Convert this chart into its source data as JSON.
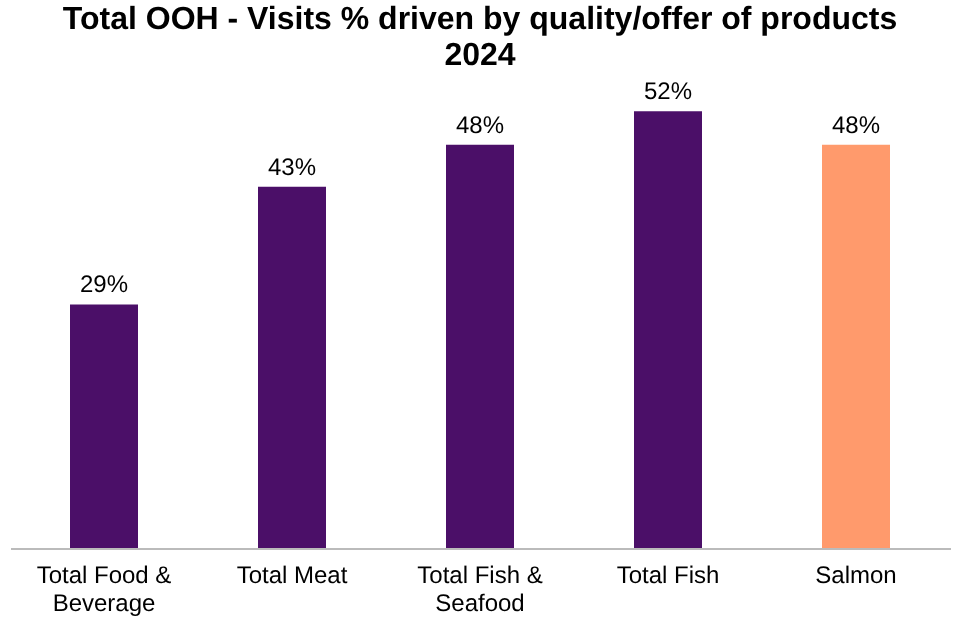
{
  "chart_data": {
    "type": "bar",
    "title": "Total OOH - Visits % driven by quality/offer of products\n2024",
    "categories": [
      "Total Food & Beverage",
      "Total Meat",
      "Total Fish & Seafood",
      "Total Fish",
      "Salmon"
    ],
    "values": [
      29,
      43,
      48,
      52,
      48
    ],
    "colors": [
      "#4b0f68",
      "#4b0f68",
      "#4b0f68",
      "#4b0f68",
      "#ff9a6c"
    ],
    "value_labels": [
      "29%",
      "43%",
      "48%",
      "52%",
      "48%"
    ],
    "grid": false,
    "legend": false
  }
}
